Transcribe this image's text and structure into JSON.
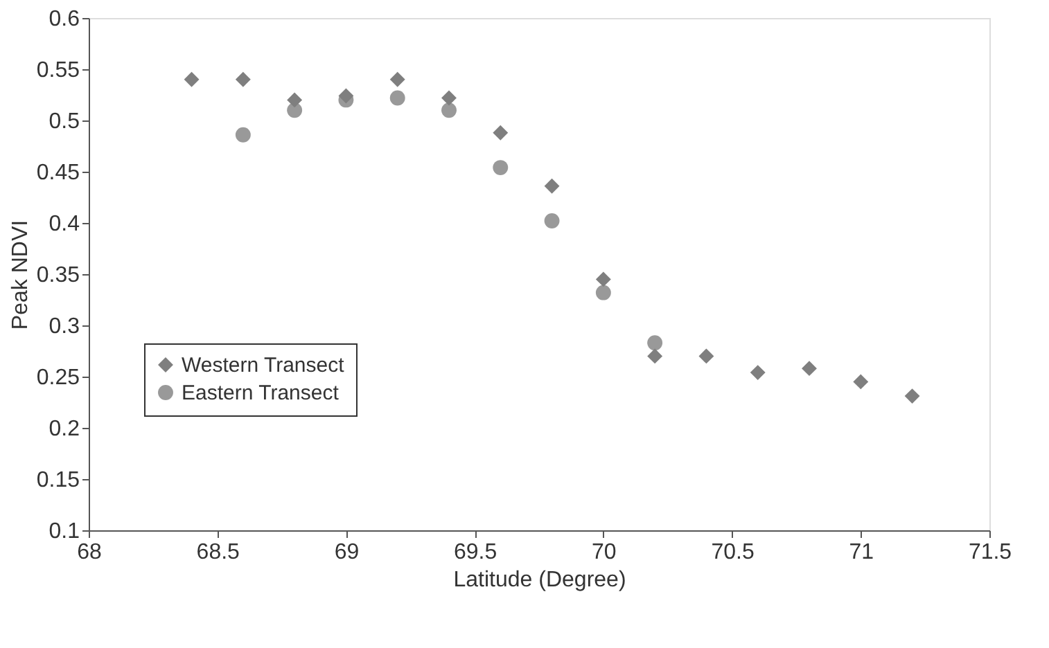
{
  "chart_data": {
    "type": "scatter",
    "xlabel": "Latitude (Degree)",
    "ylabel": "Peak NDVI",
    "xlim": [
      68,
      71.5
    ],
    "xticks": [
      68,
      68.5,
      69,
      69.5,
      70,
      70.5,
      71,
      71.5
    ],
    "ylim": [
      0.1,
      0.6
    ],
    "yticks": [
      0.1,
      0.15,
      0.2,
      0.25,
      0.3,
      0.35,
      0.4,
      0.45,
      0.5,
      0.55,
      0.6
    ],
    "grid": false,
    "legend": "bottom left",
    "series": [
      {
        "name": "Western Transect",
        "color": "#7f7f7f",
        "marker": "diamond",
        "x": [
          68.4,
          68.6,
          68.8,
          69.0,
          69.2,
          69.4,
          69.6,
          69.8,
          70.0,
          70.2,
          70.4,
          70.6,
          70.8,
          71.0,
          71.2
        ],
        "values": [
          0.54,
          0.54,
          0.52,
          0.524,
          0.54,
          0.522,
          0.488,
          0.436,
          0.345,
          0.27,
          0.27,
          0.254,
          0.258,
          0.245,
          0.231
        ]
      },
      {
        "name": "Eastern Transect",
        "color": "#999999",
        "marker": "circle",
        "x": [
          68.6,
          68.8,
          69.0,
          69.2,
          69.4,
          69.6,
          69.8,
          70.0,
          70.2
        ],
        "values": [
          0.486,
          0.51,
          0.52,
          0.522,
          0.51,
          0.454,
          0.402,
          0.332,
          0.283
        ]
      }
    ]
  }
}
